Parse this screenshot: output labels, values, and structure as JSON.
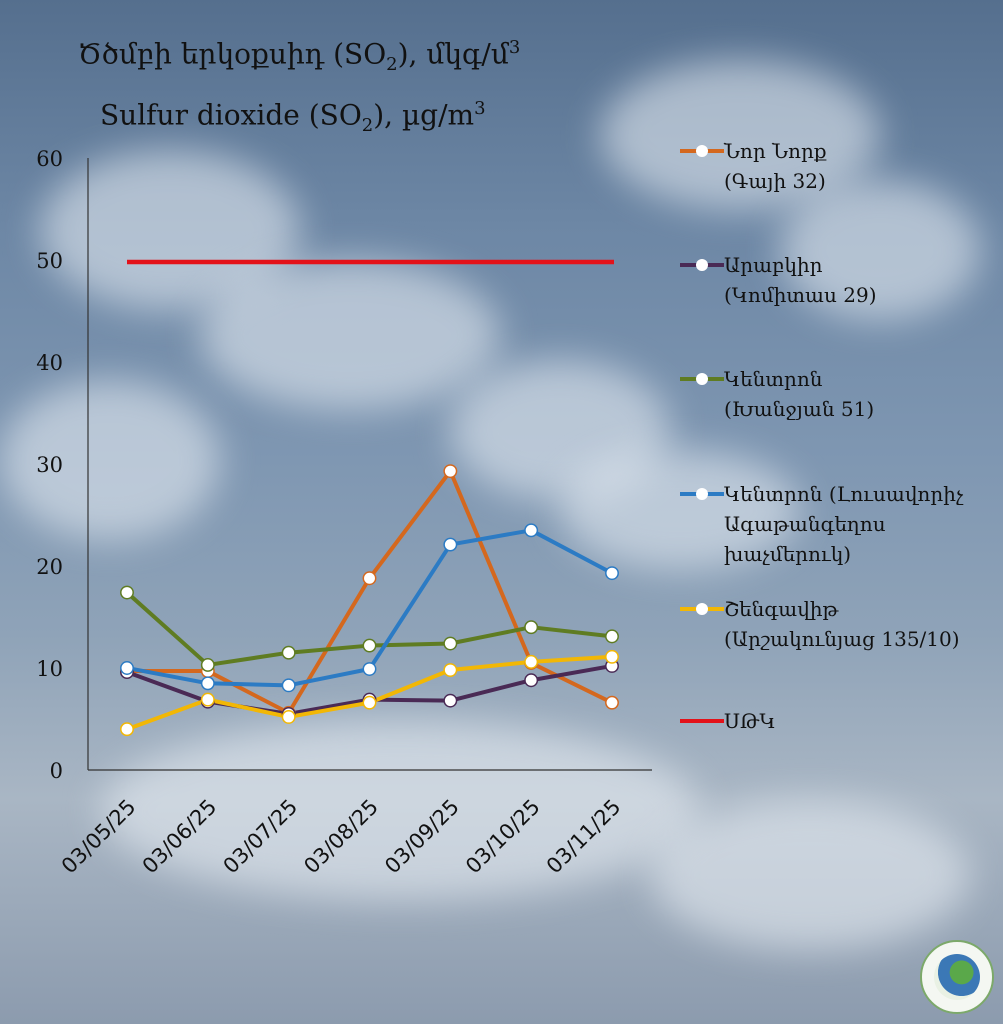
{
  "title": {
    "line1_pre": "Ծծմբի երկօքսիդ (SO",
    "line1_sub": "2",
    "line1_mid": "), մկգ/մ",
    "line1_sup": "3",
    "line2_pre": "Sulfur dioxide (SO",
    "line2_sub": "2",
    "line2_mid": "), µg/m",
    "line2_sup": "3"
  },
  "chart_data": {
    "type": "line",
    "categories": [
      "03/05/25",
      "03/06/25",
      "03/07/25",
      "03/08/25",
      "03/09/25",
      "03/10/25",
      "03/11/25"
    ],
    "ylim": [
      0,
      60
    ],
    "yticks": [
      0,
      10,
      20,
      30,
      40,
      50,
      60
    ],
    "grid": false,
    "legend": "right",
    "series": [
      {
        "name": "Նոր Նորք",
        "sub": "(Գայի 32)",
        "color": "#d4681e",
        "values": [
          9.7,
          9.7,
          5.6,
          18.8,
          29.3,
          10.5,
          6.6
        ]
      },
      {
        "name": "Արաբկիր",
        "sub": "(Կոմիտաս 29)",
        "color": "#4a2a55",
        "values": [
          9.6,
          6.7,
          5.5,
          6.9,
          6.8,
          8.8,
          10.2
        ]
      },
      {
        "name": "Կենտրոն",
        "sub": "(Խանջյան 51)",
        "color": "#5f7c22",
        "values": [
          17.4,
          10.3,
          11.5,
          12.2,
          12.4,
          14.0,
          13.1
        ]
      },
      {
        "name": "Կենտրոն (Լուսավորիչ",
        "sub": "Ագաթանգեղոս խաչմերուկ)",
        "color": "#2c7bc4",
        "values": [
          10.0,
          8.5,
          8.3,
          9.9,
          22.1,
          23.5,
          19.3
        ]
      },
      {
        "name": "Շենգավիթ",
        "sub": "(Արշակունյաց 135/10)",
        "color": "#f2b705",
        "values": [
          4.0,
          6.9,
          5.2,
          6.6,
          9.8,
          10.6,
          11.1
        ]
      }
    ],
    "limit": {
      "name": "ՍԹԿ",
      "value": 49.8,
      "color": "#e3121a"
    }
  }
}
